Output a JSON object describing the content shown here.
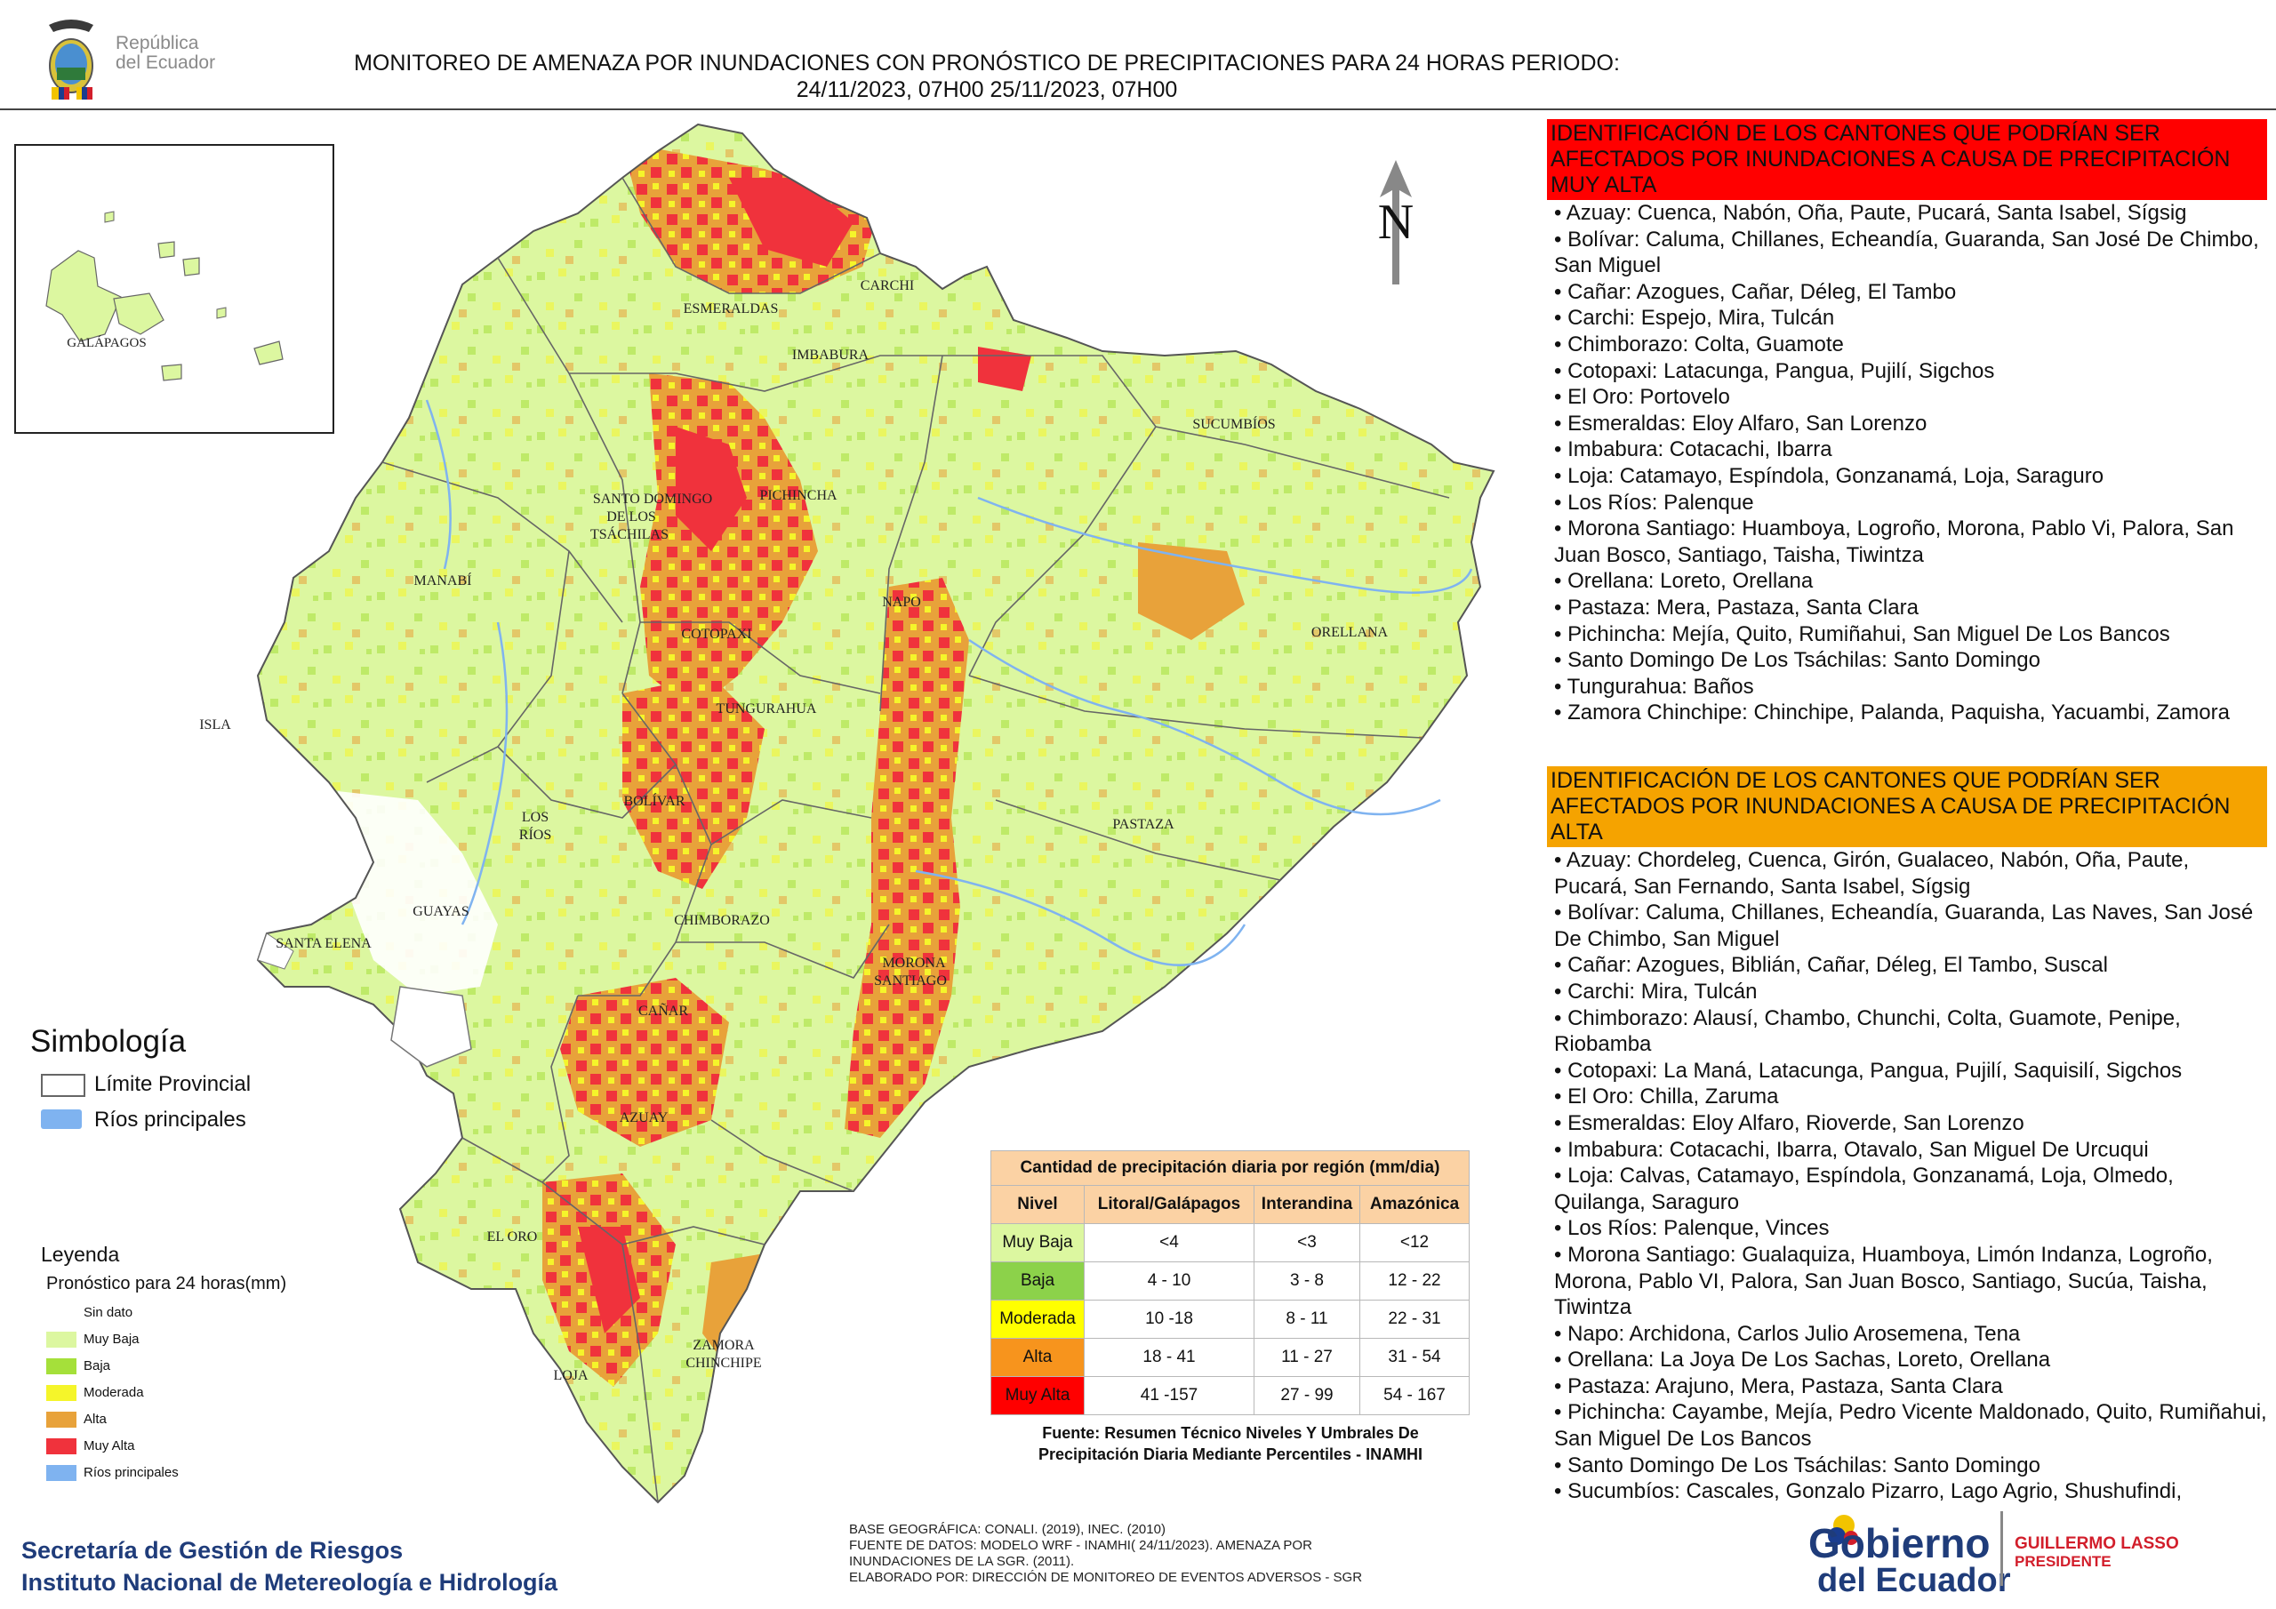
{
  "header": {
    "logo_text_1": "República",
    "logo_text_2": "del Ecuador",
    "title_line_1": "MONITOREO DE AMENAZA POR INUNDACIONES  CON PRONÓSTICO DE  PRECIPITACIONES PARA 24 HORAS  PERIODO:",
    "title_line_2": "24/11/2023, 07H00 25/11/2023, 07H00"
  },
  "north_label": "N",
  "map_labels": {
    "galapagos": "GALÁPAGOS",
    "esmeraldas": "ESMERALDAS",
    "carchi": "CARCHI",
    "imbabura": "IMBABURA",
    "sucumbios": "SUCUMBÍOS",
    "santo_domingo_1": "SANTO DOMINGO",
    "santo_domingo_2": "DE LOS",
    "santo_domingo_3": "TSÁCHILAS",
    "pichincha": "PICHINCHA",
    "manabi": "MANABÍ",
    "napo": "NAPO",
    "orellana": "ORELLANA",
    "cotopaxi": "COTOPAXI",
    "tungurahua": "TUNGURAHUA",
    "isla": "ISLA",
    "bolivar": "BOLÍVAR",
    "los_rios_1": "LOS",
    "los_rios_2": "RÍOS",
    "pastaza": "PASTAZA",
    "guayas": "GUAYAS",
    "chimborazo": "CHIMBORAZO",
    "santa_elena": "SANTA ELENA",
    "morona_1": "MORONA",
    "morona_2": "SANTIAGO",
    "canar": "CAÑAR",
    "azuay": "AZUAY",
    "el_oro": "EL ORO",
    "zamora_1": "ZAMORA",
    "zamora_2": "CHINCHIPE",
    "loja": "LOJA"
  },
  "very_high": {
    "heading": "IDENTIFICACIÓN DE LOS CANTONES QUE PODRÍAN SER AFECTADOS POR INUNDACIONES  A CAUSA DE PRECIPITACIÓN MUY ALTA",
    "items": [
      "• Azuay: Cuenca, Nabón, Oña, Paute, Pucará, Santa Isabel, Sígsig",
      "• Bolívar: Caluma, Chillanes, Echeandía, Guaranda, San José De Chimbo, San Miguel",
      "• Cañar: Azogues, Cañar, Déleg, El Tambo",
      "• Carchi: Espejo, Mira, Tulcán",
      "• Chimborazo: Colta, Guamote",
      "• Cotopaxi: Latacunga, Pangua, Pujilí, Sigchos",
      "• El Oro: Portovelo",
      "• Esmeraldas: Eloy Alfaro, San Lorenzo",
      "• Imbabura: Cotacachi, Ibarra",
      "• Loja: Catamayo, Espíndola, Gonzanamá, Loja, Saraguro",
      "• Los Ríos: Palenque",
      "• Morona Santiago: Huamboya, Logroño, Morona, Pablo Vi, Palora, San Juan Bosco, Santiago, Taisha, Tiwintza",
      "• Orellana: Loreto, Orellana",
      "• Pastaza: Mera, Pastaza, Santa Clara",
      "• Pichincha: Mejía, Quito, Rumiñahui, San Miguel De Los Bancos",
      "• Santo Domingo De Los Tsáchilas: Santo Domingo",
      "• Tungurahua: Baños",
      "• Zamora Chinchipe: Chinchipe, Palanda, Paquisha, Yacuambi, Zamora"
    ]
  },
  "high": {
    "heading": "IDENTIFICACIÓN DE LOS CANTONES QUE  PODRÍAN SER AFECTADOS POR INUNDACIONES  A CAUSA DE PRECIPITACIÓN ALTA",
    "items": [
      "• Azuay: Chordeleg, Cuenca, Girón, Gualaceo, Nabón, Oña, Paute, Pucará, San Fernando, Santa Isabel, Sígsig",
      "• Bolívar: Caluma, Chillanes, Echeandía, Guaranda, Las Naves, San José De Chimbo, San Miguel",
      "• Cañar: Azogues, Biblián, Cañar, Déleg, El Tambo, Suscal",
      "• Carchi: Mira, Tulcán",
      "• Chimborazo: Alausí, Chambo, Chunchi, Colta, Guamote, Penipe, Riobamba",
      "• Cotopaxi: La Maná, Latacunga, Pangua, Pujilí, Saquisilí, Sigchos",
      "• El Oro: Chilla, Zaruma",
      "• Esmeraldas: Eloy Alfaro, Rioverde, San Lorenzo",
      "• Imbabura: Cotacachi, Ibarra, Otavalo, San Miguel De Urcuqui",
      "• Loja: Calvas, Catamayo, Espíndola, Gonzanamá, Loja, Olmedo, Quilanga, Saraguro",
      "• Los Ríos: Palenque, Vinces",
      "• Morona Santiago: Gualaquiza, Huamboya, Limón Indanza, Logroño, Morona, Pablo VI, Palora, San Juan Bosco, Santiago, Sucúa, Taisha, Tiwintza",
      "• Napo: Archidona, Carlos Julio Arosemena, Tena",
      "• Orellana: La Joya De Los Sachas, Loreto, Orellana",
      "• Pastaza: Arajuno, Mera, Pastaza, Santa Clara",
      "• Pichincha: Cayambe, Mejía, Pedro Vicente Maldonado, Quito, Rumiñahui, San Miguel De Los Bancos",
      "• Santo Domingo De Los Tsáchilas: Santo Domingo",
      "• Sucumbíos: Cascales, Gonzalo Pizarro, Lago Agrio, Shushufindi,"
    ]
  },
  "simbologia": {
    "title": "Simbología",
    "limite": "Límite Provincial",
    "rios": "Ríos principales"
  },
  "leyenda": {
    "title": "Leyenda",
    "subtitle": "Pronóstico para 24 horas(mm)",
    "items": [
      {
        "label": "Sin dato",
        "color": "#ffffff"
      },
      {
        "label": "Muy Baja",
        "color": "#dcf7a0"
      },
      {
        "label": "Baja",
        "color": "#a5e03a"
      },
      {
        "label": "Moderada",
        "color": "#f5f52a"
      },
      {
        "label": "Alta",
        "color": "#e8a23a"
      },
      {
        "label": "Muy Alta",
        "color": "#f0323c"
      },
      {
        "label": "Ríos principales",
        "color": "#7fb3f0"
      }
    ]
  },
  "precip_table": {
    "caption": "Cantidad de precipitación diaria por región (mm/dia)",
    "headers": [
      "Nivel",
      "Litoral/Galápagos",
      "Interandina",
      "Amazónica"
    ],
    "rows": [
      {
        "nivel": "Muy Baja",
        "litoral": "<4",
        "interandina": "<3",
        "amazonica": "<12",
        "color": "#dcf7a0"
      },
      {
        "nivel": "Baja",
        "litoral": "4 - 10",
        "interandina": "3 - 8",
        "amazonica": "12 - 22",
        "color": "#8cd24a"
      },
      {
        "nivel": "Moderada",
        "litoral": "10 -18",
        "interandina": "8 - 11",
        "amazonica": "22 - 31",
        "color": "#ffff00"
      },
      {
        "nivel": "Alta",
        "litoral": "18 - 41",
        "interandina": "11 - 27",
        "amazonica": "31 - 54",
        "color": "#f7941d"
      },
      {
        "nivel": "Muy Alta",
        "litoral": "41 -157",
        "interandina": "27 - 99",
        "amazonica": "54 - 167",
        "color": "#ff0000"
      }
    ],
    "source_1": "Fuente: Resumen Técnico Niveles Y Umbrales De",
    "source_2": "Precipitación Diaria Mediante Percentiles - INAMHI"
  },
  "footer": {
    "org_1": "Secretaría de Gestión de Riesgos",
    "org_2": "Instituto Nacional de Metereología e Hidrología",
    "meta": [
      "BASE GEOGRÁFICA: CONALI. (2019), INEC. (2010)",
      "FUENTE DE DATOS: MODELO WRF - INAMHI( 24/11/2023).  AMENAZA POR",
      "INUNDACIONES DE LA SGR. (2011).",
      "ELABORADO POR: DIRECCIÓN DE MONITOREO DE EVENTOS ADVERSOS - SGR"
    ],
    "gob_1": "Gobierno",
    "gob_2": "del Ecuador",
    "pres_1": "GUILLERMO LASSO",
    "pres_2": "PRESIDENTE"
  }
}
